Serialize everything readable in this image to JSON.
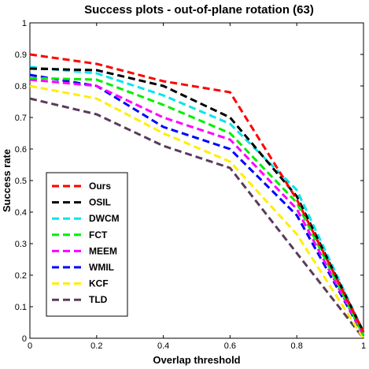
{
  "chart_data": {
    "type": "line",
    "title": "Success plots - out-of-plane rotation (63)",
    "xlabel": "Overlap threshold",
    "ylabel": "Success rate",
    "xlim": [
      0,
      1
    ],
    "ylim": [
      0,
      1
    ],
    "xticks": [
      "0",
      "0.2",
      "0.4",
      "0.6",
      "0.8",
      "1"
    ],
    "yticks": [
      "0",
      "0.1",
      "0.2",
      "0.3",
      "0.4",
      "0.5",
      "0.6",
      "0.7",
      "0.8",
      "0.9",
      "1"
    ],
    "grid": false,
    "legend_position": "bottom-left",
    "x": [
      0,
      0.2,
      0.4,
      0.6,
      0.8,
      1.0
    ],
    "series": [
      {
        "name": "Ours",
        "color": "#ff0000",
        "values": [
          0.9,
          0.87,
          0.815,
          0.78,
          0.44,
          0.02
        ]
      },
      {
        "name": "OSIL",
        "color": "#000000",
        "values": [
          0.855,
          0.85,
          0.8,
          0.7,
          0.45,
          0.02
        ]
      },
      {
        "name": "DWCM",
        "color": "#00e5ee",
        "values": [
          0.86,
          0.84,
          0.77,
          0.68,
          0.47,
          0.02
        ]
      },
      {
        "name": "FCT",
        "color": "#00ee00",
        "values": [
          0.825,
          0.82,
          0.74,
          0.65,
          0.43,
          0.01
        ]
      },
      {
        "name": "MEEM",
        "color": "#ff00ff",
        "values": [
          0.82,
          0.8,
          0.7,
          0.63,
          0.41,
          0.01
        ]
      },
      {
        "name": "WMIL",
        "color": "#0000ff",
        "values": [
          0.835,
          0.8,
          0.67,
          0.6,
          0.39,
          0.01
        ]
      },
      {
        "name": "KCF",
        "color": "#ffee00",
        "values": [
          0.8,
          0.76,
          0.65,
          0.56,
          0.33,
          0.0
        ]
      },
      {
        "name": "TLD",
        "color": "#5b3b5b",
        "values": [
          0.76,
          0.71,
          0.61,
          0.54,
          0.27,
          0.0
        ]
      }
    ]
  }
}
